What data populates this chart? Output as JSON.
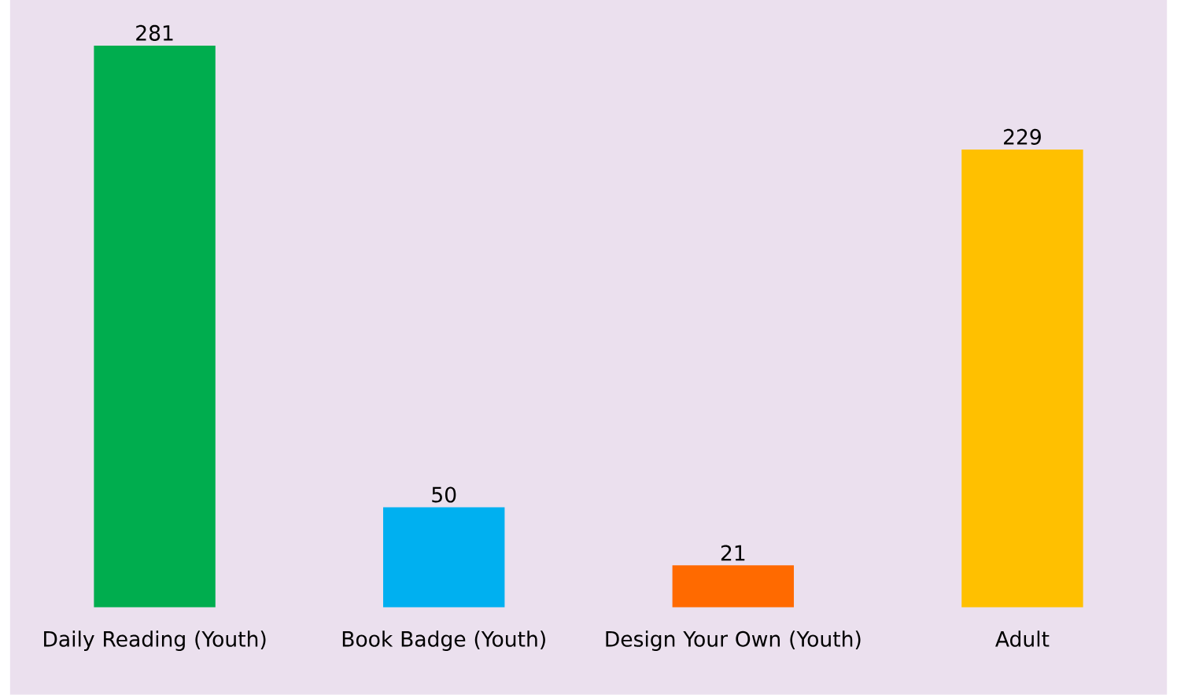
{
  "chart_data": {
    "type": "bar",
    "categories": [
      "Daily Reading (Youth)",
      "Book Badge (Youth)",
      "Design Your Own (Youth)",
      "Adult"
    ],
    "values": [
      281,
      50,
      21,
      229
    ],
    "colors": [
      "#00ad4e",
      "#00b0f0",
      "#ff6a00",
      "#ffc000"
    ],
    "data_labels": true
  }
}
